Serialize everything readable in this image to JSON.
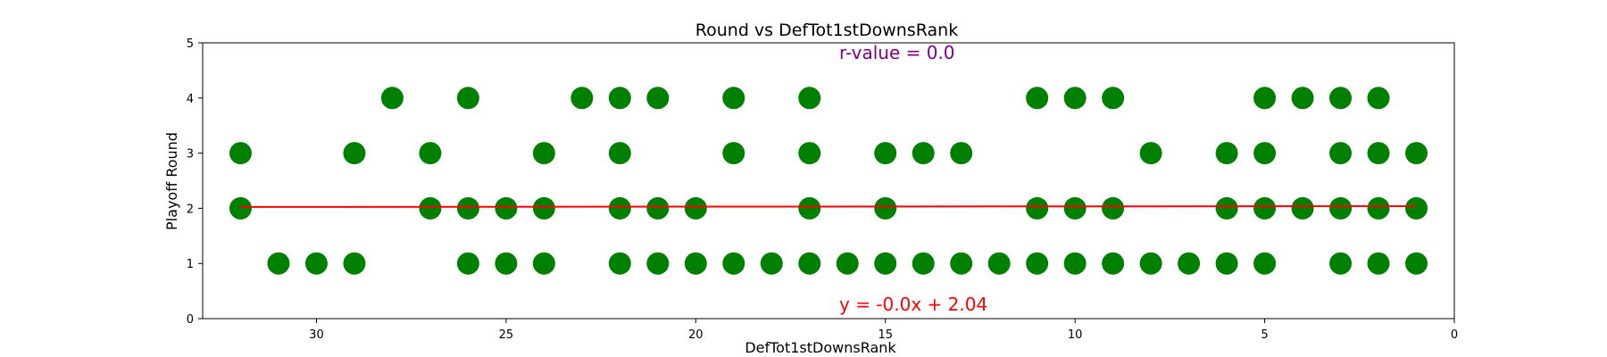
{
  "chart_data": {
    "type": "scatter",
    "title": "Round vs DefTot1stDownsRank",
    "xlabel": "DefTot1stDownsRank",
    "ylabel": "Playoff Round",
    "xlim": [
      33,
      0
    ],
    "ylim": [
      0,
      5
    ],
    "xticks": [
      30,
      25,
      20,
      15,
      10,
      5,
      0
    ],
    "yticks": [
      0,
      1,
      2,
      3,
      4,
      5
    ],
    "grid": false,
    "point_color": "#008000",
    "line_color": "#ff0000",
    "r_value_color": "#800080",
    "annotations": {
      "r_value": "r-value = 0.0",
      "equation": "y = -0.0x + 2.04"
    },
    "regression": {
      "slope": -0.0005,
      "intercept": 2.04,
      "x_range": [
        32,
        1
      ]
    },
    "points": [
      [
        32,
        3
      ],
      [
        32,
        2
      ],
      [
        31,
        1
      ],
      [
        30,
        1
      ],
      [
        29,
        3
      ],
      [
        29,
        1
      ],
      [
        28,
        4
      ],
      [
        27,
        3
      ],
      [
        27,
        2
      ],
      [
        26,
        4
      ],
      [
        26,
        2
      ],
      [
        26,
        1
      ],
      [
        25,
        2
      ],
      [
        25,
        1
      ],
      [
        24,
        3
      ],
      [
        24,
        2
      ],
      [
        24,
        1
      ],
      [
        23,
        4
      ],
      [
        22,
        4
      ],
      [
        22,
        3
      ],
      [
        22,
        2
      ],
      [
        22,
        1
      ],
      [
        21,
        4
      ],
      [
        21,
        2
      ],
      [
        21,
        1
      ],
      [
        20,
        2
      ],
      [
        20,
        1
      ],
      [
        19,
        4
      ],
      [
        19,
        3
      ],
      [
        19,
        1
      ],
      [
        18,
        1
      ],
      [
        17,
        4
      ],
      [
        17,
        3
      ],
      [
        17,
        2
      ],
      [
        17,
        1
      ],
      [
        16,
        1
      ],
      [
        15,
        3
      ],
      [
        15,
        2
      ],
      [
        15,
        1
      ],
      [
        14,
        3
      ],
      [
        14,
        1
      ],
      [
        13,
        3
      ],
      [
        13,
        1
      ],
      [
        12,
        1
      ],
      [
        11,
        4
      ],
      [
        11,
        2
      ],
      [
        11,
        1
      ],
      [
        10,
        4
      ],
      [
        10,
        2
      ],
      [
        10,
        1
      ],
      [
        9,
        4
      ],
      [
        9,
        2
      ],
      [
        9,
        1
      ],
      [
        8,
        3
      ],
      [
        8,
        1
      ],
      [
        7,
        1
      ],
      [
        6,
        3
      ],
      [
        6,
        2
      ],
      [
        6,
        1
      ],
      [
        5,
        4
      ],
      [
        5,
        3
      ],
      [
        5,
        2
      ],
      [
        5,
        1
      ],
      [
        4,
        4
      ],
      [
        4,
        2
      ],
      [
        3,
        4
      ],
      [
        3,
        3
      ],
      [
        3,
        2
      ],
      [
        3,
        1
      ],
      [
        2,
        4
      ],
      [
        2,
        3
      ],
      [
        2,
        2
      ],
      [
        2,
        1
      ],
      [
        1,
        3
      ],
      [
        1,
        2
      ],
      [
        1,
        1
      ]
    ]
  }
}
